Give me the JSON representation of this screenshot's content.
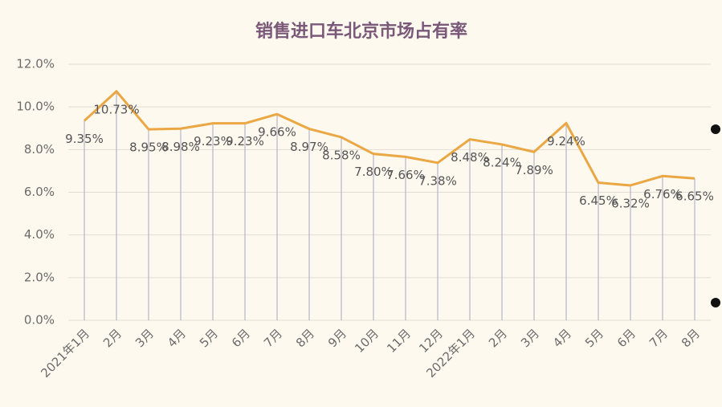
{
  "chart_data": {
    "type": "line",
    "title": "销售进口车北京市场占有率",
    "categories": [
      "2021年1月",
      "2月",
      "3月",
      "4月",
      "5月",
      "6月",
      "7月",
      "8月",
      "9月",
      "10月",
      "11月",
      "12月",
      "2022年1月",
      "2月",
      "3月",
      "4月",
      "5月",
      "6月",
      "7月",
      "8月"
    ],
    "values": [
      9.35,
      10.73,
      8.95,
      8.98,
      9.23,
      9.23,
      9.66,
      8.97,
      8.58,
      7.8,
      7.66,
      7.38,
      8.48,
      8.24,
      7.89,
      9.24,
      6.45,
      6.32,
      6.76,
      6.65
    ],
    "value_labels": [
      "9.35%",
      "10.73%",
      "8.95%",
      "8.98%",
      "9.23%",
      "9.23%",
      "9.66%",
      "8.97%",
      "8.58%",
      "7.80%",
      "7.66%",
      "7.38%",
      "8.48%",
      "8.24%",
      "7.89%",
      "9.24%",
      "6.45%",
      "6.32%",
      "6.76%",
      "6.65%"
    ],
    "color": "#eaa743",
    "ylim": [
      0,
      12
    ],
    "yticks": [
      {
        "value": 0,
        "label": "0.0%"
      },
      {
        "value": 2,
        "label": "2.0%"
      },
      {
        "value": 4,
        "label": "4.0%"
      },
      {
        "value": 6,
        "label": "6.0%"
      },
      {
        "value": 8,
        "label": "8.0%"
      },
      {
        "value": 10,
        "label": "10.0%"
      },
      {
        "value": 12,
        "label": "12.0%"
      }
    ],
    "grid": true
  }
}
